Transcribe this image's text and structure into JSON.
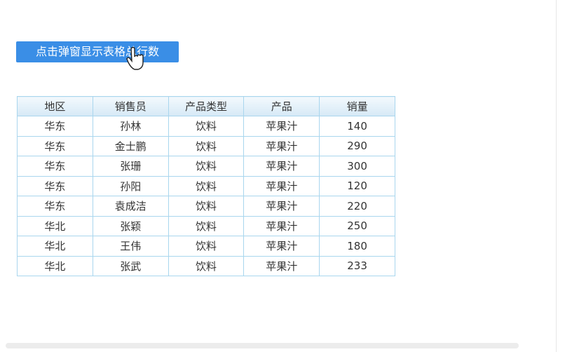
{
  "button": {
    "label": "点击弹窗显示表格总行数"
  },
  "table": {
    "columns": [
      "地区",
      "销售员",
      "产品类型",
      "产品",
      "销量"
    ],
    "rows": [
      [
        "华东",
        "孙林",
        "饮料",
        "苹果汁",
        "140"
      ],
      [
        "华东",
        "金士鹏",
        "饮料",
        "苹果汁",
        "290"
      ],
      [
        "华东",
        "张珊",
        "饮料",
        "苹果汁",
        "300"
      ],
      [
        "华东",
        "孙阳",
        "饮料",
        "苹果汁",
        "120"
      ],
      [
        "华东",
        "袁成洁",
        "饮料",
        "苹果汁",
        "220"
      ],
      [
        "华北",
        "张颖",
        "饮料",
        "苹果汁",
        "250"
      ],
      [
        "华北",
        "王伟",
        "饮料",
        "苹果汁",
        "180"
      ],
      [
        "华北",
        "张武",
        "饮料",
        "苹果汁",
        "233"
      ]
    ]
  }
}
